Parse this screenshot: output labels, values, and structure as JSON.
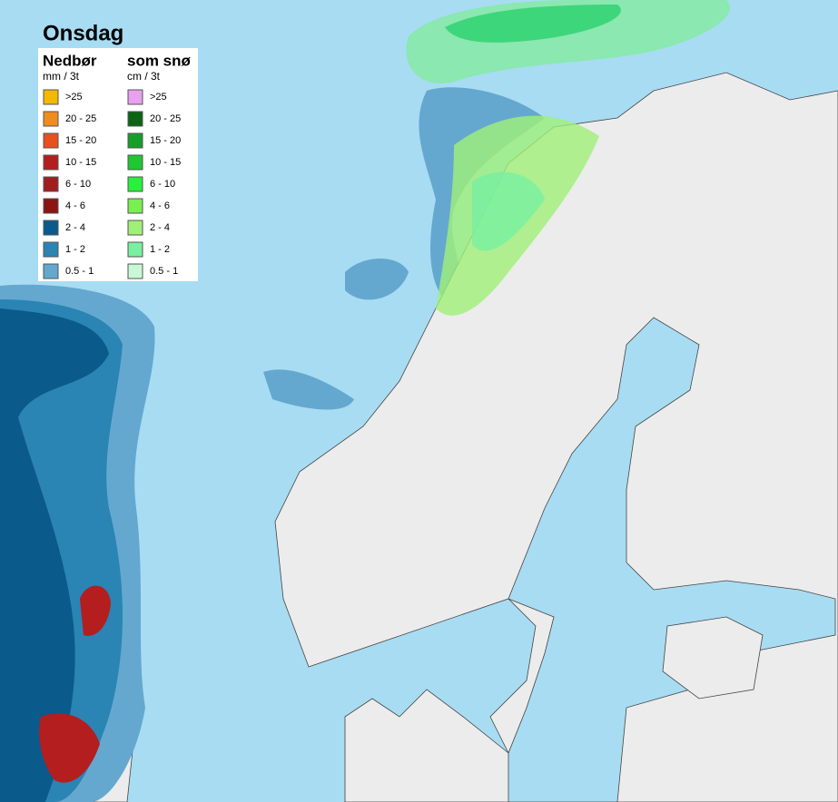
{
  "title": "Onsdag",
  "legend": {
    "rain": {
      "title": "Nedbør",
      "unit": "mm / 3t",
      "items": [
        {
          "label": ">25",
          "color": "#f5b800"
        },
        {
          "label": "20 - 25",
          "color": "#f08c1e"
        },
        {
          "label": "15 - 20",
          "color": "#e8501e"
        },
        {
          "label": "10 - 15",
          "color": "#b41e1e"
        },
        {
          "label": "6 - 10",
          "color": "#a01e1e"
        },
        {
          "label": "4 - 6",
          "color": "#8c1414"
        },
        {
          "label": "2 - 4",
          "color": "#0a5a8c"
        },
        {
          "label": "1 - 2",
          "color": "#2a84b4"
        },
        {
          "label": "0.5 - 1",
          "color": "#64a8d0"
        }
      ]
    },
    "snow": {
      "title": "som snø",
      "unit": "cm / 3t",
      "items": [
        {
          "label": ">25",
          "color": "#e8a0f0"
        },
        {
          "label": "20 - 25",
          "color": "#0a6414"
        },
        {
          "label": "15 - 20",
          "color": "#14a028"
        },
        {
          "label": "10 - 15",
          "color": "#1ec832"
        },
        {
          "label": "6 - 10",
          "color": "#28f03c"
        },
        {
          "label": "4 - 6",
          "color": "#78f050"
        },
        {
          "label": "2 - 4",
          "color": "#a0f078"
        },
        {
          "label": "1 - 2",
          "color": "#78f0a0"
        },
        {
          "label": "0.5 - 1",
          "color": "#c8f8d8"
        }
      ]
    }
  }
}
